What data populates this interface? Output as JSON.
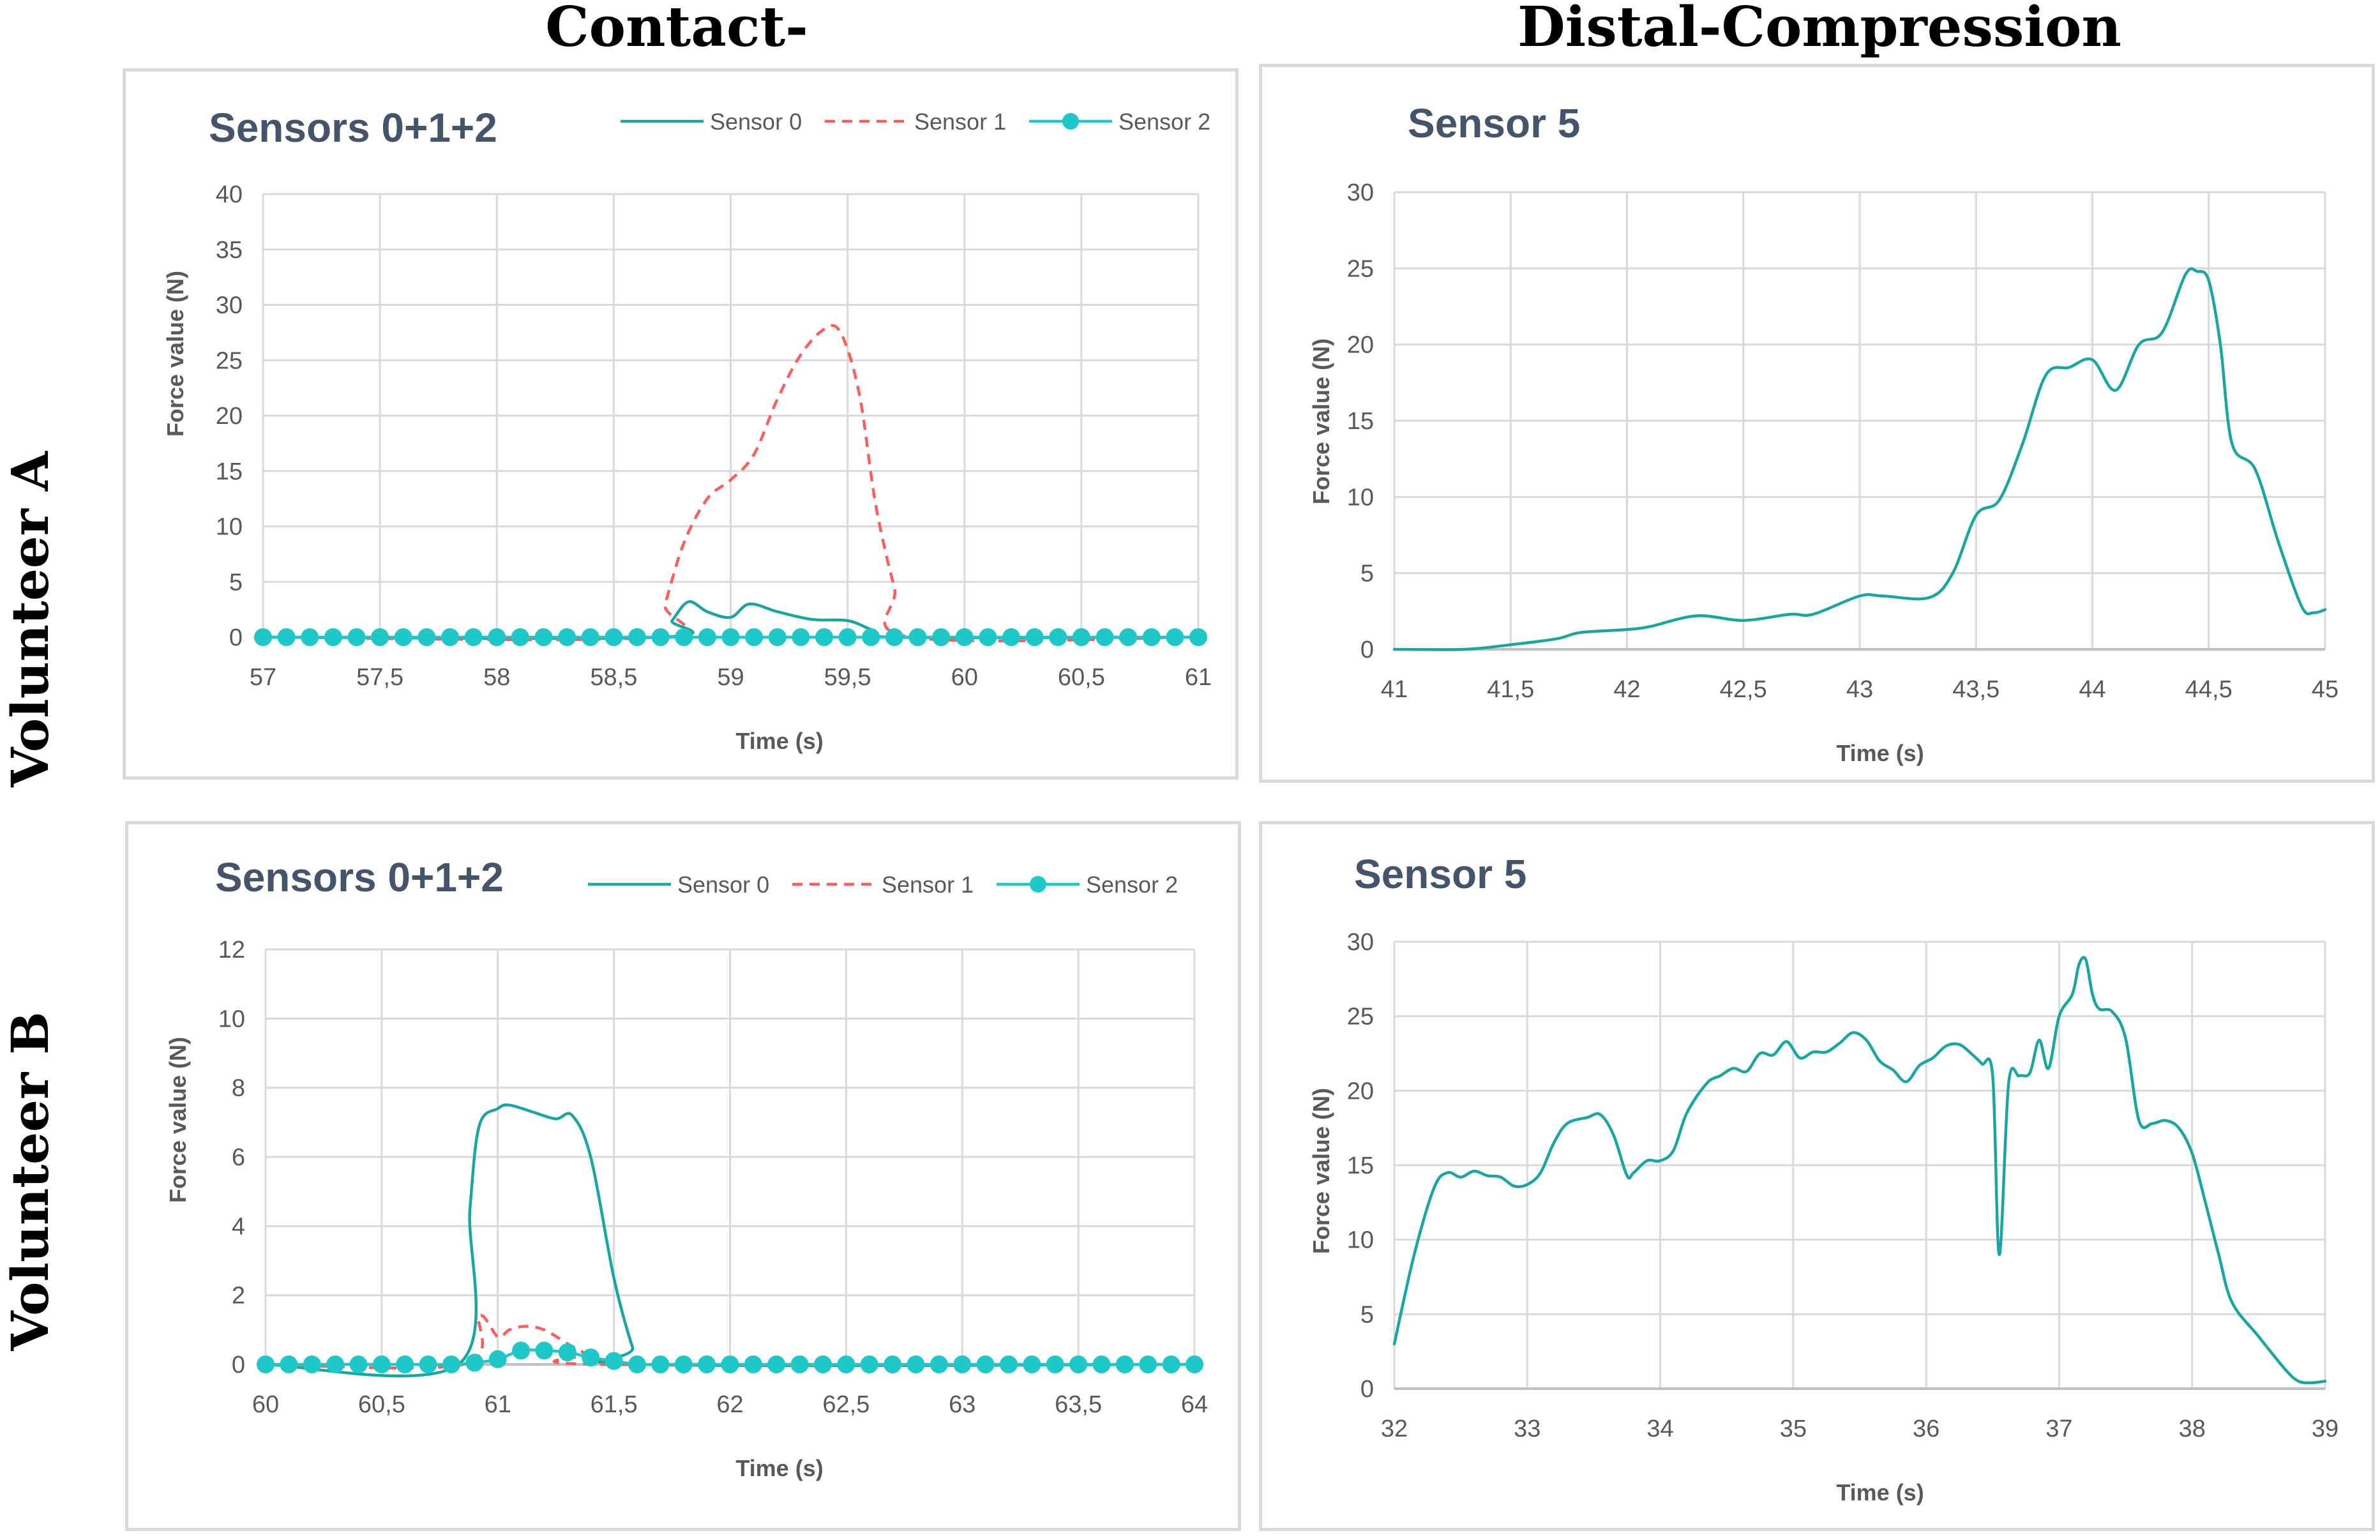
{
  "column_titles": [
    "Contact-Grip",
    "Distal-Compression"
  ],
  "row_titles": [
    "Volunteer A",
    "Volunteer B"
  ],
  "colors": {
    "sensor0": "#17a7a0",
    "sensor1": "#ff5b5b",
    "sensor2": "#1fc8c8",
    "sensor5": "#17a7a0",
    "grid": "#d9d9d9",
    "axis": "#bfbfbf"
  },
  "chart_data": [
    {
      "id": "A-grip",
      "type": "line",
      "title": "Sensors 0+1+2",
      "xlabel": "Time (s)",
      "ylabel": "Force value (N)",
      "xlim": [
        57,
        61
      ],
      "ylim": [
        0,
        40
      ],
      "xticks": [
        57,
        57.5,
        58,
        58.5,
        59,
        59.5,
        60,
        60.5,
        61
      ],
      "xtick_labels": [
        "57",
        "57,5",
        "58",
        "58,5",
        "59",
        "59,5",
        "60",
        "60,5",
        "61"
      ],
      "yticks": [
        0,
        5,
        10,
        15,
        20,
        25,
        30,
        35,
        40
      ],
      "ytick_labels": [
        "0",
        "5",
        "10",
        "15",
        "20",
        "25",
        "30",
        "35",
        "40"
      ],
      "legend": [
        "Sensor 0",
        "Sensor 1",
        "Sensor 2"
      ],
      "series": [
        {
          "name": "Sensor 0",
          "style": "solid",
          "x": [
            57,
            58.7,
            58.75,
            58.82,
            58.9,
            59,
            59.08,
            59.2,
            59.35,
            59.5,
            59.6,
            59.7,
            61
          ],
          "y": [
            0,
            0,
            1.5,
            3.2,
            2.3,
            1.8,
            3.0,
            2.3,
            1.6,
            1.5,
            0.7,
            0,
            0
          ]
        },
        {
          "name": "Sensor 1",
          "style": "dashed",
          "x": [
            57,
            58.68,
            58.72,
            58.8,
            58.9,
            59.0,
            59.1,
            59.2,
            59.3,
            59.4,
            59.47,
            59.55,
            59.62,
            59.7,
            59.77,
            61
          ],
          "y": [
            0,
            0,
            3,
            8.5,
            12.5,
            14.2,
            16.5,
            21.5,
            25.5,
            27.8,
            27.5,
            22,
            12,
            4.5,
            0,
            0
          ]
        },
        {
          "name": "Sensor 2",
          "style": "markers",
          "x": [
            57,
            57.1,
            57.2,
            57.3,
            57.4,
            57.5,
            57.6,
            57.7,
            57.8,
            57.9,
            58,
            58.1,
            58.2,
            58.3,
            58.4,
            58.5,
            58.6,
            58.7,
            58.8,
            58.9,
            59,
            59.1,
            59.2,
            59.3,
            59.4,
            59.5,
            59.6,
            59.7,
            59.8,
            59.9,
            60,
            60.1,
            60.2,
            60.3,
            60.4,
            60.5,
            60.6,
            60.7,
            60.8,
            60.9,
            61
          ],
          "y": [
            0,
            0,
            0,
            0,
            0,
            0,
            0,
            0,
            0,
            0,
            0,
            0,
            0,
            0,
            0,
            0,
            0,
            0,
            0,
            0,
            0,
            0,
            0,
            0,
            0,
            0,
            0,
            0,
            0,
            0,
            0,
            0,
            0,
            0,
            0,
            0,
            0,
            0,
            0,
            0,
            0
          ]
        }
      ]
    },
    {
      "id": "A-distal",
      "type": "line",
      "title": "Sensor 5",
      "xlabel": "Time (s)",
      "ylabel": "Force value (N)",
      "xlim": [
        41,
        45
      ],
      "ylim": [
        0,
        30
      ],
      "xticks": [
        41,
        41.5,
        42,
        42.5,
        43,
        43.5,
        44,
        44.5,
        45
      ],
      "xtick_labels": [
        "41",
        "41,5",
        "42",
        "42,5",
        "43",
        "43,5",
        "44",
        "44,5",
        "45"
      ],
      "yticks": [
        0,
        5,
        10,
        15,
        20,
        25,
        30
      ],
      "ytick_labels": [
        "0",
        "5",
        "10",
        "15",
        "20",
        "25",
        "30"
      ],
      "legend": [],
      "series": [
        {
          "name": "Sensor 5",
          "style": "solid",
          "x": [
            41,
            41.3,
            41.5,
            41.7,
            41.8,
            42.0,
            42.1,
            42.3,
            42.5,
            42.7,
            42.8,
            43.0,
            43.1,
            43.3,
            43.4,
            43.5,
            43.6,
            43.7,
            43.8,
            43.9,
            44.0,
            44.1,
            44.2,
            44.3,
            44.4,
            44.45,
            44.5,
            44.55,
            44.6,
            44.7,
            44.8,
            44.9,
            44.95,
            45.0
          ],
          "y": [
            0,
            0,
            0.3,
            0.7,
            1.1,
            1.3,
            1.5,
            2.2,
            1.9,
            2.3,
            2.3,
            3.5,
            3.5,
            3.4,
            5.0,
            8.8,
            9.8,
            13.5,
            18.0,
            18.5,
            19.0,
            17.0,
            20.0,
            20.8,
            24.6,
            24.8,
            24.2,
            20.0,
            13.5,
            11.8,
            7.0,
            2.8,
            2.4,
            2.6
          ]
        }
      ]
    },
    {
      "id": "B-grip",
      "type": "line",
      "title": "Sensors 0+1+2",
      "xlabel": "Time (s)",
      "ylabel": "Force value (N)",
      "xlim": [
        60,
        64
      ],
      "ylim": [
        0,
        12
      ],
      "xticks": [
        60,
        60.5,
        61,
        61.5,
        62,
        62.5,
        63,
        63.5,
        64
      ],
      "xtick_labels": [
        "60",
        "60,5",
        "61",
        "61,5",
        "62",
        "62,5",
        "63",
        "63,5",
        "64"
      ],
      "yticks": [
        0,
        2,
        4,
        6,
        8,
        10,
        12
      ],
      "ytick_labels": [
        "0",
        "2",
        "4",
        "6",
        "8",
        "10",
        "12"
      ],
      "legend": [
        "Sensor 0",
        "Sensor 1",
        "Sensor 2"
      ],
      "series": [
        {
          "name": "Sensor 0",
          "style": "solid",
          "x": [
            60,
            60.83,
            60.88,
            60.92,
            61.0,
            61.05,
            61.15,
            61.25,
            61.32,
            61.4,
            61.5,
            61.58,
            61.62,
            64
          ],
          "y": [
            0,
            0,
            4.5,
            6.9,
            7.4,
            7.5,
            7.3,
            7.1,
            7.2,
            6.0,
            2.5,
            0.5,
            0,
            0
          ]
        },
        {
          "name": "Sensor 1",
          "style": "dashed",
          "x": [
            60,
            60.85,
            60.92,
            61.0,
            61.05,
            61.12,
            61.2,
            61.3,
            61.38,
            61.45,
            64
          ],
          "y": [
            0,
            0,
            1.4,
            0.8,
            1.0,
            1.1,
            1.0,
            0.6,
            0.3,
            0,
            0
          ]
        },
        {
          "name": "Sensor 2",
          "style": "markers",
          "x": [
            60,
            60.1,
            60.2,
            60.3,
            60.4,
            60.5,
            60.6,
            60.7,
            60.8,
            60.9,
            61,
            61.1,
            61.2,
            61.3,
            61.4,
            61.5,
            61.6,
            61.7,
            61.8,
            61.9,
            62,
            62.1,
            62.2,
            62.3,
            62.4,
            62.5,
            62.6,
            62.7,
            62.8,
            62.9,
            63,
            63.1,
            63.2,
            63.3,
            63.4,
            63.5,
            63.6,
            63.7,
            63.8,
            63.9,
            64
          ],
          "y": [
            0,
            0,
            0,
            0,
            0,
            0,
            0,
            0,
            0,
            0.05,
            0.15,
            0.4,
            0.4,
            0.35,
            0.2,
            0.1,
            0,
            0,
            0,
            0,
            0,
            0,
            0,
            0,
            0,
            0,
            0,
            0,
            0,
            0,
            0,
            0,
            0,
            0,
            0,
            0,
            0,
            0,
            0,
            0,
            0
          ]
        }
      ]
    },
    {
      "id": "B-distal",
      "type": "line",
      "title": "Sensor 5",
      "xlabel": "Time (s)",
      "ylabel": "Force value (N)",
      "xlim": [
        32,
        39
      ],
      "ylim": [
        0,
        30
      ],
      "xticks": [
        32,
        33,
        34,
        35,
        36,
        37,
        38,
        39
      ],
      "xtick_labels": [
        "32",
        "33",
        "34",
        "35",
        "36",
        "37",
        "38",
        "39"
      ],
      "yticks": [
        0,
        5,
        10,
        15,
        20,
        25,
        30
      ],
      "ytick_labels": [
        "0",
        "5",
        "10",
        "15",
        "20",
        "25",
        "30"
      ],
      "legend": [],
      "series": [
        {
          "name": "Sensor 5",
          "style": "solid",
          "x": [
            32,
            32.15,
            32.3,
            32.4,
            32.5,
            32.6,
            32.7,
            32.8,
            32.9,
            33.0,
            33.1,
            33.2,
            33.3,
            33.45,
            33.55,
            33.65,
            33.75,
            33.8,
            33.9,
            34.0,
            34.1,
            34.2,
            34.35,
            34.45,
            34.55,
            34.65,
            34.75,
            34.85,
            34.95,
            35.05,
            35.15,
            35.25,
            35.35,
            35.45,
            35.55,
            35.65,
            35.75,
            35.85,
            35.95,
            36.05,
            36.15,
            36.25,
            36.35,
            36.42,
            36.5,
            36.55,
            36.62,
            36.7,
            36.78,
            36.85,
            36.92,
            37.0,
            37.1,
            37.15,
            37.2,
            37.25,
            37.3,
            37.4,
            37.5,
            37.6,
            37.7,
            37.8,
            37.9,
            38.0,
            38.1,
            38.2,
            38.3,
            38.5,
            38.7,
            38.8,
            38.9,
            39.0
          ],
          "y": [
            3,
            9,
            13.5,
            14.5,
            14.2,
            14.6,
            14.3,
            14.2,
            13.6,
            13.7,
            14.5,
            16.5,
            17.8,
            18.2,
            18.4,
            17.0,
            14.3,
            14.5,
            15.3,
            15.3,
            16.0,
            18.5,
            20.5,
            21.0,
            21.5,
            21.3,
            22.5,
            22.4,
            23.3,
            22.2,
            22.6,
            22.6,
            23.2,
            23.9,
            23.4,
            22.0,
            21.4,
            20.6,
            21.7,
            22.2,
            23.0,
            23.1,
            22.4,
            21.8,
            21.0,
            9.0,
            20.5,
            21.0,
            21.2,
            23.4,
            21.5,
            25.0,
            26.5,
            28.5,
            28.8,
            26.5,
            25.5,
            25.3,
            23.5,
            18.0,
            17.8,
            18.0,
            17.5,
            15.8,
            12.5,
            9.0,
            5.8,
            3.5,
            1.3,
            0.5,
            0.4,
            0.5
          ]
        }
      ]
    }
  ]
}
